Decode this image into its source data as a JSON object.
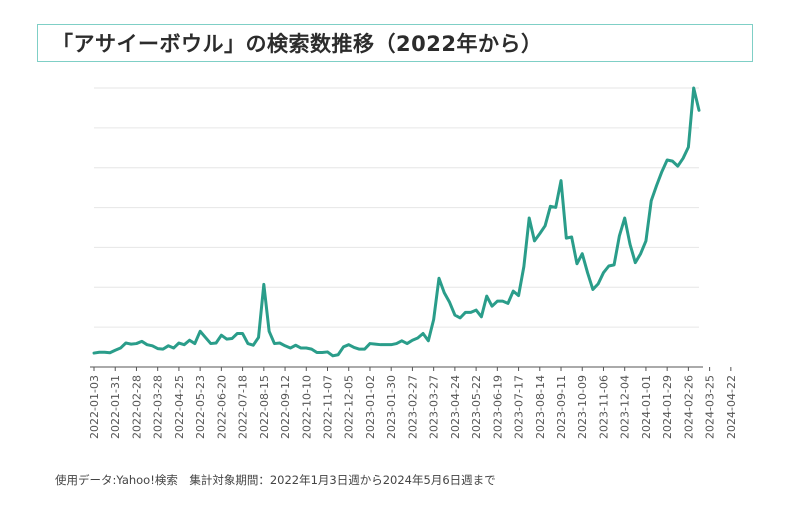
{
  "title": "「アサイーボウル」の検索数推移（2022年から）",
  "footnote": "使用データ:Yahoo!検索　集計対象期間：2022年1月3日週から2024年5月6日週まで",
  "colors": {
    "line": "#2a9d8a",
    "grid": "#e6e6e6",
    "axis": "#555555",
    "tick_text": "#555555",
    "border": "#7fcfc6"
  },
  "chart_data": {
    "type": "line",
    "title": "「アサイーボウル」の検索数推移（2022年から）",
    "xlabel": "",
    "ylabel": "",
    "ylim": [
      0,
      100
    ],
    "grid": true,
    "y_tick_labels_visible": false,
    "tick_labels": [
      "2022-01-03",
      "2022-01-31",
      "2022-02-28",
      "2022-03-28",
      "2022-04-25",
      "2022-05-23",
      "2022-06-20",
      "2022-07-18",
      "2022-08-15",
      "2022-09-12",
      "2022-10-10",
      "2022-11-07",
      "2022-12-05",
      "2023-01-02",
      "2023-01-30",
      "2023-02-27",
      "2023-03-27",
      "2023-04-24",
      "2023-05-22",
      "2023-06-19",
      "2023-07-17",
      "2023-08-14",
      "2023-09-11",
      "2023-10-09",
      "2023-11-06",
      "2023-12-04",
      "2024-01-01",
      "2024-01-29",
      "2024-02-26",
      "2024-03-25",
      "2024-04-22"
    ],
    "series": [
      {
        "name": "検索数",
        "values": [
          5,
          5.3,
          5.3,
          5.1,
          6,
          6.8,
          8.6,
          8.2,
          8.4,
          9.2,
          8,
          7.6,
          6.6,
          6.4,
          7.6,
          6.8,
          8.6,
          8,
          9.6,
          8.4,
          12.8,
          10.6,
          8.4,
          8.6,
          11.4,
          10,
          10.2,
          12,
          12,
          8.4,
          7.8,
          10.6,
          29.6,
          12.8,
          8.4,
          8.6,
          7.6,
          6.8,
          7.8,
          6.8,
          6.8,
          6.4,
          5.2,
          5.2,
          5.4,
          4,
          4.4,
          7.2,
          8,
          7,
          6.4,
          6.4,
          8.4,
          8.2,
          8,
          8,
          8,
          8.4,
          9.4,
          8.4,
          9.6,
          10.4,
          12,
          9.4,
          17,
          31.8,
          26.6,
          23.2,
          18.6,
          17.6,
          19.6,
          19.6,
          20.4,
          18,
          25.4,
          21.8,
          23.6,
          23.6,
          22.8,
          27.2,
          25.6,
          36,
          53.4,
          45.2,
          47.8,
          50.6,
          57.6,
          57.2,
          66.8,
          46.2,
          46.6,
          37,
          40.6,
          33.8,
          27.8,
          29.8,
          33.8,
          36.2,
          36.6,
          47,
          53.4,
          44,
          37.4,
          40.6,
          45.2,
          59.6,
          65,
          70,
          74.2,
          73.8,
          72,
          74.8,
          78.8,
          100,
          92
        ]
      }
    ]
  }
}
